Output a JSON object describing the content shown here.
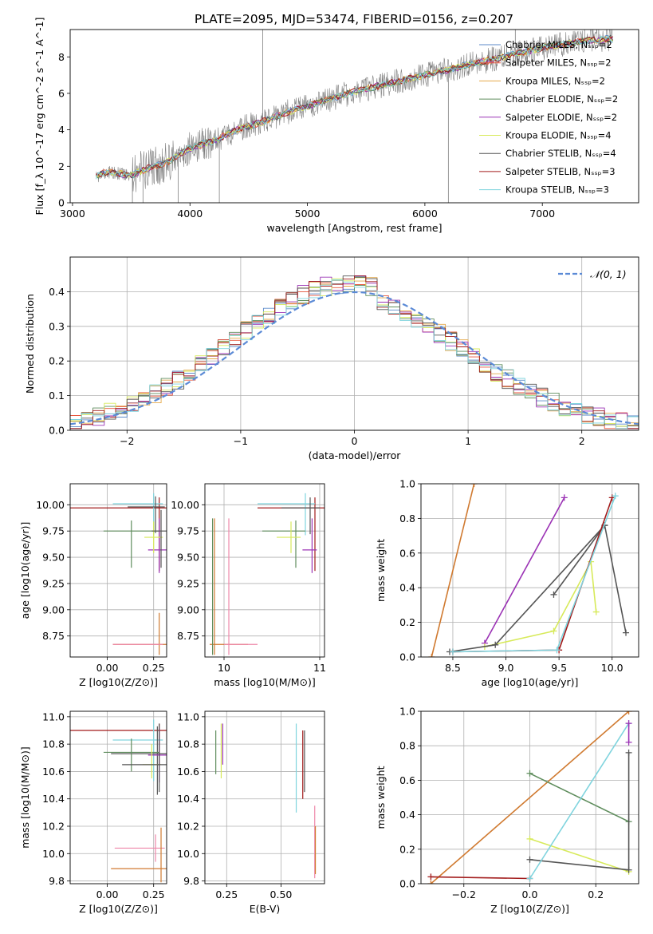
{
  "figure": {
    "title": "PLATE=2095, MJD=53474, FIBERID=0156, z=0.207"
  },
  "colors": {
    "chabrier_miles": "#5b8ac9",
    "salpeter_miles": "#e8553b",
    "kroupa_miles": "#e4a84a",
    "chabrier_elodie": "#5f8d5d",
    "salpeter_elodie": "#9b33b5",
    "kroupa_elodie": "#d7ea5a",
    "chabrier_stelib": "#555555",
    "salpeter_stelib": "#a21b1b",
    "kroupa_stelib": "#80d4de",
    "data": "#808080",
    "pink": "#ee88aa",
    "orange": "#d07a30",
    "gauss": "#5b8ad6"
  },
  "chart_data": [
    {
      "id": "spectrum",
      "type": "line",
      "xlabel": "wavelength [Angstrom, rest frame]",
      "ylabel": "Flux [f_λ 10^-17 erg cm^-2 s^-1 A^-1]",
      "xlim": [
        2980,
        7820
      ],
      "ylim": [
        0,
        9.5
      ],
      "xticks": [
        3000,
        4000,
        5000,
        6000,
        7000
      ],
      "yticks": [
        0,
        2,
        4,
        6,
        8
      ],
      "legend": {
        "placement": "right",
        "entries": [
          "Chabrier MILES, N_SSP=2",
          "Salpeter MILES, N_SSP=2",
          "Kroupa MILES, N_SSP=2",
          "Chabrier ELODIE, N_SSP=2",
          "Salpeter ELODIE, N_SSP=2",
          "Kroupa ELODIE, N_SSP=4",
          "Chabrier STELIB, N_SSP=4",
          "Salpeter STELIB, N_SSP=3",
          "Kroupa STELIB, N_SSP=3"
        ]
      },
      "continuum": {
        "x": [
          3200,
          3250,
          3300,
          3400,
          3500,
          3600,
          3700,
          3800,
          3900,
          4000,
          4200,
          4400,
          4600,
          4800,
          5000,
          5200,
          5400,
          5600,
          5800,
          6000,
          6200,
          6400,
          6600,
          6800,
          7000,
          7200,
          7400,
          7600
        ],
        "y": [
          1.4,
          1.6,
          1.7,
          1.6,
          1.5,
          1.8,
          2.0,
          2.2,
          2.6,
          3.0,
          3.4,
          4.0,
          4.4,
          4.9,
          5.3,
          5.7,
          6.1,
          6.4,
          6.7,
          7.0,
          7.3,
          7.6,
          7.9,
          8.2,
          8.5,
          8.7,
          8.9,
          9.0
        ]
      }
    },
    {
      "id": "residuals",
      "type": "line",
      "xlabel": "(data-model)/error",
      "ylabel": "Normed distribution",
      "xlim": [
        -2.5,
        2.5
      ],
      "ylim": [
        0,
        0.5
      ],
      "xticks": [
        -2,
        -1,
        0,
        1,
        2
      ],
      "yticks": [
        0.0,
        0.1,
        0.2,
        0.3,
        0.4
      ],
      "legend": {
        "placement": "top-right",
        "entries": [
          "𝒩(0, 1)"
        ]
      }
    },
    {
      "id": "age_vs_Z",
      "type": "scatter",
      "xlabel": "Z [log10(Z/Z⊙)]",
      "ylabel": "age  [log10(age/yr)]",
      "xlim": [
        -0.2,
        0.32
      ],
      "ylim": [
        8.55,
        10.2
      ],
      "xticks": [
        0.0,
        0.25
      ],
      "yticks": [
        8.75,
        9.0,
        9.25,
        9.5,
        9.75,
        10.0
      ]
    },
    {
      "id": "age_vs_mass",
      "type": "scatter",
      "xlabel": "mass [log10(M/M⊙)]",
      "ylabel": "",
      "xlim": [
        9.8,
        11.05
      ],
      "ylim": [
        8.55,
        10.2
      ],
      "xticks": [
        10,
        11
      ],
      "yticks": [
        8.75,
        9.0,
        9.25,
        9.5,
        9.75,
        10.0
      ]
    },
    {
      "id": "weight_vs_age",
      "type": "line",
      "xlabel": "age  [log10(age/yr)]",
      "ylabel": "mass weight",
      "xlim": [
        8.2,
        10.25
      ],
      "ylim": [
        0,
        1.0
      ],
      "xticks": [
        8.5,
        9.0,
        9.5,
        10.0
      ],
      "yticks": [
        0.0,
        0.2,
        0.4,
        0.6,
        0.8,
        1.0
      ],
      "series": [
        {
          "color": "orange",
          "x": [
            8.3,
            8.7
          ],
          "y": [
            0.0,
            1.0
          ]
        },
        {
          "color": "salpeter_elodie",
          "x": [
            8.8,
            9.55
          ],
          "y": [
            0.08,
            0.92
          ]
        },
        {
          "color": "kroupa_elodie",
          "x": [
            8.8,
            9.45,
            9.8,
            9.85
          ],
          "y": [
            0.06,
            0.15,
            0.55,
            0.26
          ]
        },
        {
          "color": "chabrier_stelib",
          "x": [
            8.47,
            8.9,
            9.93,
            10.13
          ],
          "y": [
            0.03,
            0.07,
            0.76,
            0.14
          ]
        },
        {
          "color": "chabrier_stelib",
          "x": [
            9.45,
            9.93
          ],
          "y": [
            0.36,
            0.76
          ]
        },
        {
          "color": "salpeter_stelib",
          "x": [
            8.5,
            9.5,
            10.0
          ],
          "y": [
            0.03,
            0.04,
            0.92
          ]
        },
        {
          "color": "kroupa_stelib",
          "x": [
            8.5,
            9.48,
            10.03
          ],
          "y": [
            0.03,
            0.04,
            0.93
          ]
        }
      ]
    },
    {
      "id": "mass_vs_Z",
      "type": "scatter",
      "xlabel": "Z [log10(Z/Z⊙)]",
      "ylabel": "mass [log10(M/M⊙)]",
      "xlim": [
        -0.2,
        0.32
      ],
      "ylim": [
        9.78,
        11.04
      ],
      "xticks": [
        0.0,
        0.25
      ],
      "yticks": [
        9.8,
        10.0,
        10.2,
        10.4,
        10.6,
        10.8,
        11.0
      ]
    },
    {
      "id": "mass_vs_EBV",
      "type": "scatter",
      "xlabel": "E(B-V)",
      "ylabel": "",
      "xlim": [
        0.15,
        0.7
      ],
      "ylim": [
        9.78,
        11.04
      ],
      "xticks": [
        0.25,
        0.5
      ],
      "yticks": [
        9.8,
        10.0,
        10.2,
        10.4,
        10.6,
        10.8,
        11.0
      ]
    },
    {
      "id": "weight_vs_Z",
      "type": "line",
      "xlabel": "Z [log10(Z/Z⊙)]",
      "ylabel": "mass weight",
      "xlim": [
        -0.33,
        0.33
      ],
      "ylim": [
        0,
        1.0
      ],
      "xticks": [
        -0.2,
        0.0,
        0.2
      ],
      "yticks": [
        0.0,
        0.2,
        0.4,
        0.6,
        0.8,
        1.0
      ],
      "series": [
        {
          "color": "orange",
          "x": [
            -0.3,
            0.3
          ],
          "y": [
            0.0,
            1.0
          ]
        },
        {
          "color": "salpeter_stelib",
          "x": [
            -0.3,
            0.0
          ],
          "y": [
            0.04,
            0.03
          ]
        },
        {
          "color": "chabrier_elodie",
          "x": [
            0.0,
            0.3
          ],
          "y": [
            0.64,
            0.36
          ]
        },
        {
          "color": "kroupa_elodie",
          "x": [
            0.0,
            0.3
          ],
          "y": [
            0.26,
            0.07
          ]
        },
        {
          "color": "chabrier_stelib",
          "x": [
            0.0,
            0.3,
            0.3
          ],
          "y": [
            0.14,
            0.08,
            0.76
          ]
        },
        {
          "color": "kroupa_stelib",
          "x": [
            0.0,
            0.3
          ],
          "y": [
            0.03,
            0.93
          ]
        },
        {
          "color": "salpeter_elodie",
          "x": [
            0.3,
            0.3
          ],
          "y": [
            0.82,
            0.93
          ]
        }
      ]
    }
  ]
}
